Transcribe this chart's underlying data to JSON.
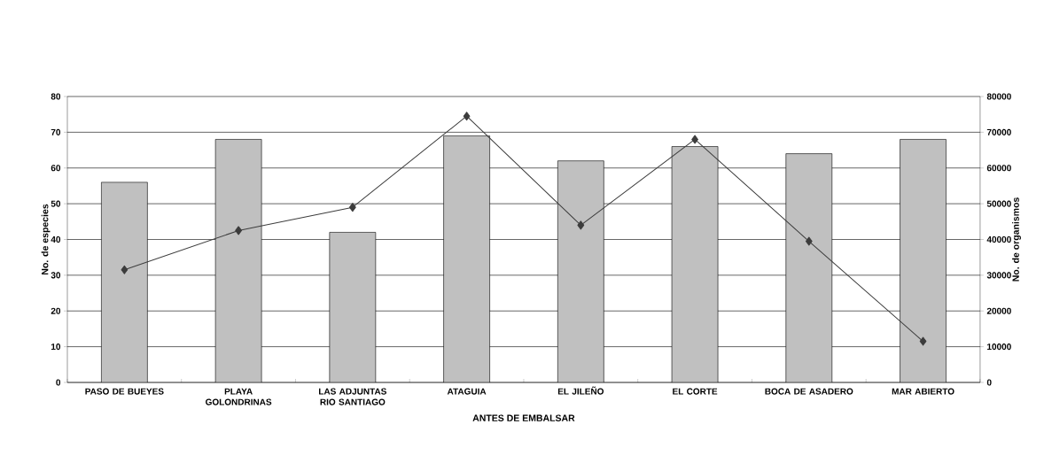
{
  "chart_data": {
    "type": "bar",
    "xlabel": "ANTES DE EMBALSAR",
    "ylabel": "No. de especies",
    "y2label": "No. de organismos",
    "categories": [
      "PASO DE BUEYES",
      "PLAYA GOLONDRINAS",
      "LAS ADJUNTAS RIO SANTIAGO",
      "ATAGUIA",
      "EL JILEÑO",
      "EL CORTE",
      "BOCA DE ASADERO",
      "MAR ABIERTO"
    ],
    "series": [
      {
        "color": "#c0c0c0",
        "values": [
          56,
          68,
          42,
          69,
          62,
          66,
          64,
          68
        ]
      },
      {
        "type": "line",
        "axis": "y2",
        "color": "#3c3c3c",
        "values": [
          31500,
          42500,
          49000,
          74500,
          44000,
          68000,
          39500,
          11500
        ]
      }
    ],
    "ylim": [
      0,
      80
    ],
    "yticks": [
      0,
      10,
      20,
      30,
      40,
      50,
      60,
      70,
      80
    ],
    "y2lim": [
      0,
      80000
    ],
    "y2ticks": [
      0,
      10000,
      20000,
      30000,
      40000,
      50000,
      60000,
      70000,
      80000
    ],
    "grid": "y",
    "marker": "diamond",
    "line_style": "solid"
  }
}
